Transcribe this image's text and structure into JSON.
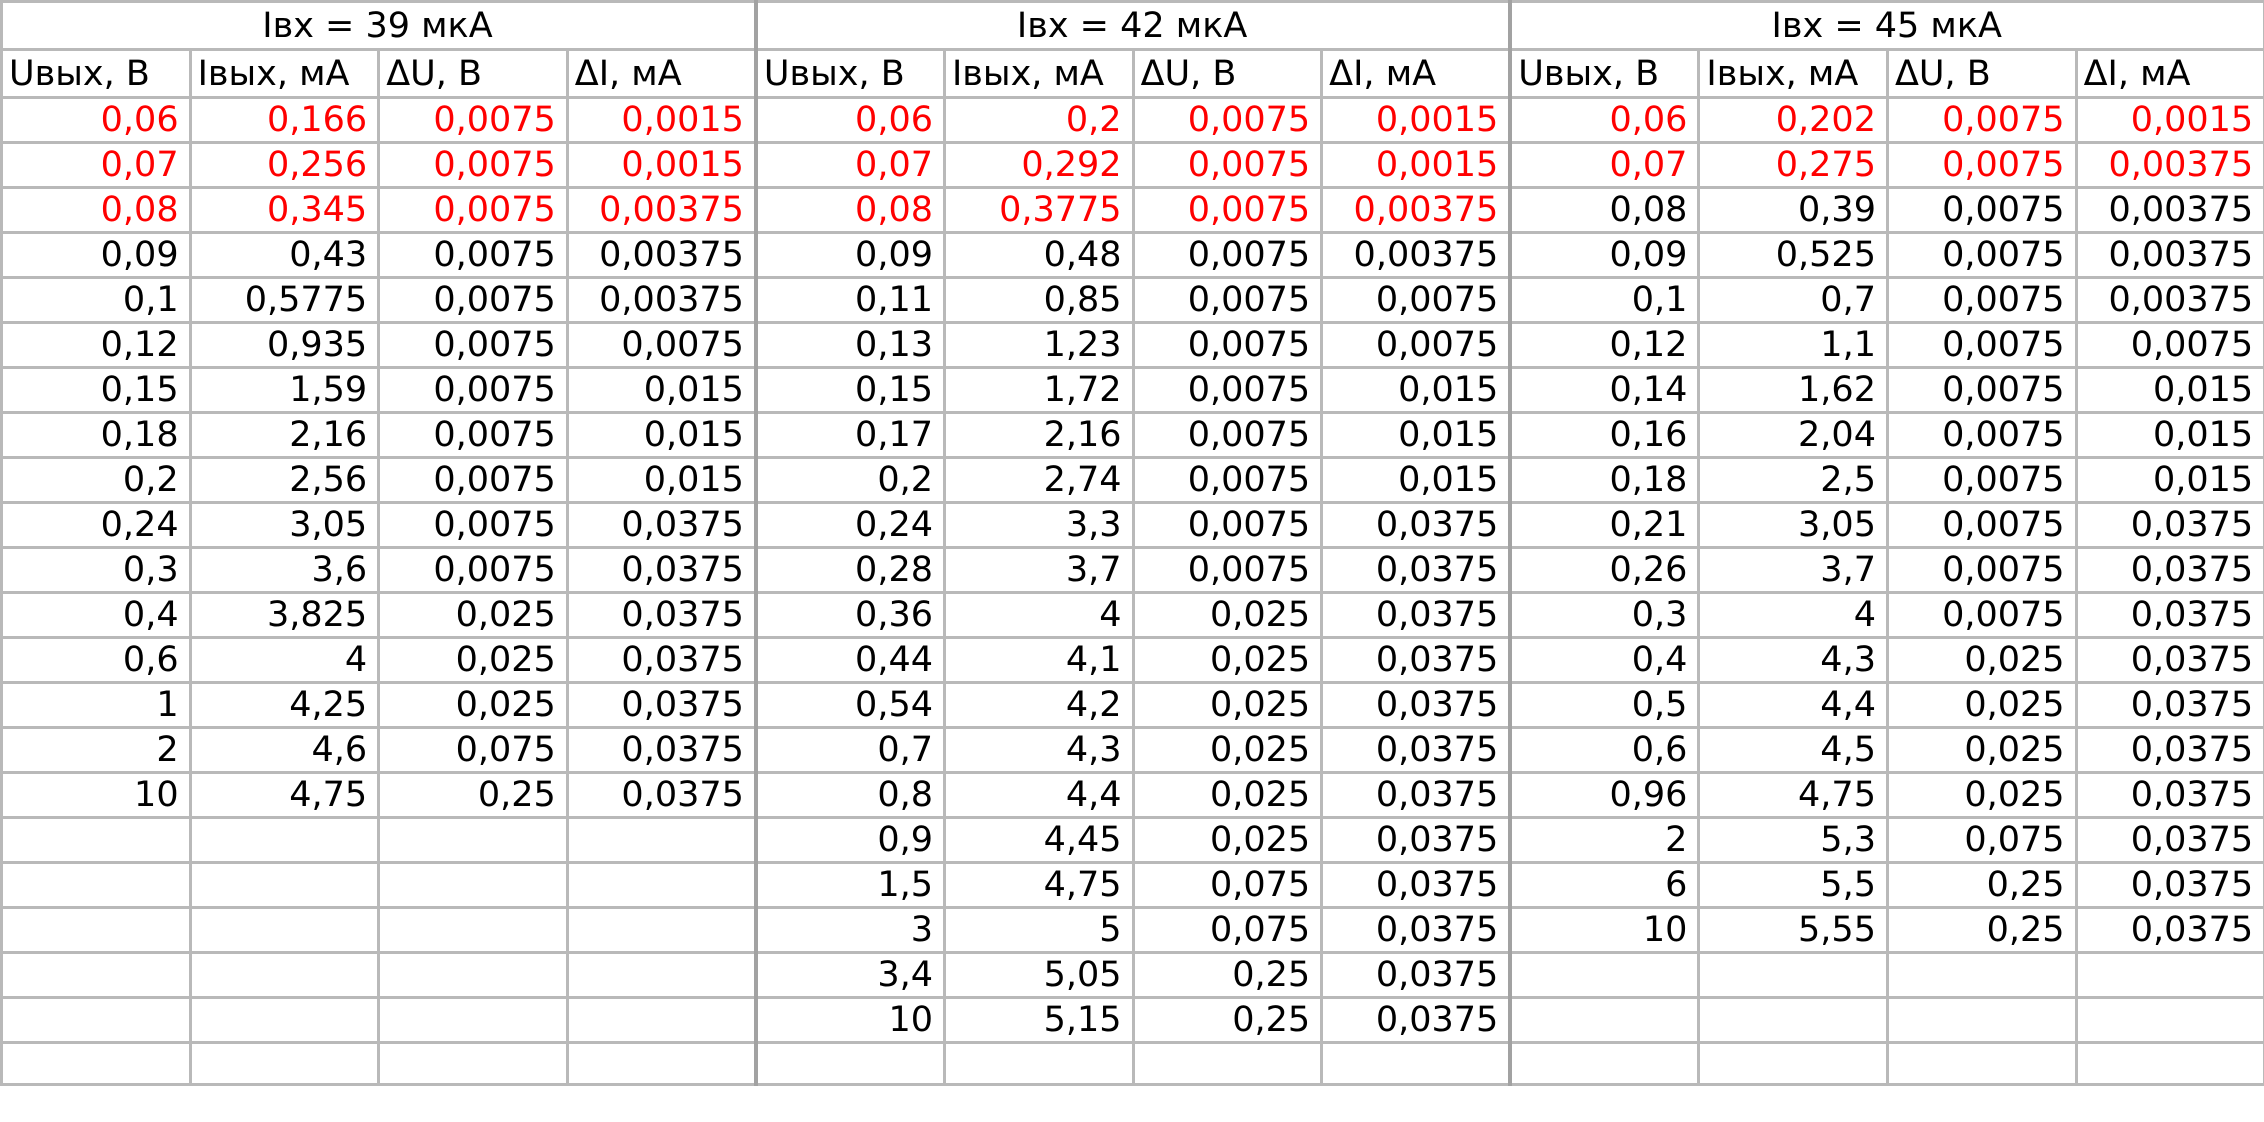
{
  "highlight_color": "#ff0000",
  "text_color": "#000000",
  "groups": [
    "Iвх = 39 мкА",
    "Iвх = 42 мкА",
    "Iвх = 45 мкА"
  ],
  "column_headers": [
    "Uвых, В",
    "Iвых, мА",
    "ΔU, В",
    "ΔI, мА"
  ],
  "rows": [
    [
      {
        "v": "0,06",
        "red": true
      },
      {
        "v": "0,166",
        "red": true
      },
      {
        "v": "0,0075",
        "red": true
      },
      {
        "v": "0,0015",
        "red": true
      },
      {
        "v": "0,06",
        "red": true
      },
      {
        "v": "0,2",
        "red": true
      },
      {
        "v": "0,0075",
        "red": true
      },
      {
        "v": "0,0015",
        "red": true
      },
      {
        "v": "0,06",
        "red": true
      },
      {
        "v": "0,202",
        "red": true
      },
      {
        "v": "0,0075",
        "red": true
      },
      {
        "v": "0,0015",
        "red": true
      }
    ],
    [
      {
        "v": "0,07",
        "red": true
      },
      {
        "v": "0,256",
        "red": true
      },
      {
        "v": "0,0075",
        "red": true
      },
      {
        "v": "0,0015",
        "red": true
      },
      {
        "v": "0,07",
        "red": true
      },
      {
        "v": "0,292",
        "red": true
      },
      {
        "v": "0,0075",
        "red": true
      },
      {
        "v": "0,0015",
        "red": true
      },
      {
        "v": "0,07",
        "red": true
      },
      {
        "v": "0,275",
        "red": true
      },
      {
        "v": "0,0075",
        "red": true
      },
      {
        "v": "0,00375",
        "red": true
      }
    ],
    [
      {
        "v": "0,08",
        "red": true
      },
      {
        "v": "0,345",
        "red": true
      },
      {
        "v": "0,0075",
        "red": true
      },
      {
        "v": "0,00375",
        "red": true
      },
      {
        "v": "0,08",
        "red": true
      },
      {
        "v": "0,3775",
        "red": true
      },
      {
        "v": "0,0075",
        "red": true
      },
      {
        "v": "0,00375",
        "red": true
      },
      {
        "v": "0,08"
      },
      {
        "v": "0,39"
      },
      {
        "v": "0,0075"
      },
      {
        "v": "0,00375"
      }
    ],
    [
      {
        "v": "0,09"
      },
      {
        "v": "0,43"
      },
      {
        "v": "0,0075"
      },
      {
        "v": "0,00375"
      },
      {
        "v": "0,09"
      },
      {
        "v": "0,48"
      },
      {
        "v": "0,0075"
      },
      {
        "v": "0,00375"
      },
      {
        "v": "0,09"
      },
      {
        "v": "0,525"
      },
      {
        "v": "0,0075"
      },
      {
        "v": "0,00375"
      }
    ],
    [
      {
        "v": "0,1"
      },
      {
        "v": "0,5775"
      },
      {
        "v": "0,0075"
      },
      {
        "v": "0,00375"
      },
      {
        "v": "0,11"
      },
      {
        "v": "0,85"
      },
      {
        "v": "0,0075"
      },
      {
        "v": "0,0075"
      },
      {
        "v": "0,1"
      },
      {
        "v": "0,7"
      },
      {
        "v": "0,0075"
      },
      {
        "v": "0,00375"
      }
    ],
    [
      {
        "v": "0,12"
      },
      {
        "v": "0,935"
      },
      {
        "v": "0,0075"
      },
      {
        "v": "0,0075"
      },
      {
        "v": "0,13"
      },
      {
        "v": "1,23"
      },
      {
        "v": "0,0075"
      },
      {
        "v": "0,0075"
      },
      {
        "v": "0,12"
      },
      {
        "v": "1,1"
      },
      {
        "v": "0,0075"
      },
      {
        "v": "0,0075"
      }
    ],
    [
      {
        "v": "0,15"
      },
      {
        "v": "1,59"
      },
      {
        "v": "0,0075"
      },
      {
        "v": "0,015"
      },
      {
        "v": "0,15"
      },
      {
        "v": "1,72"
      },
      {
        "v": "0,0075"
      },
      {
        "v": "0,015"
      },
      {
        "v": "0,14"
      },
      {
        "v": "1,62"
      },
      {
        "v": "0,0075"
      },
      {
        "v": "0,015"
      }
    ],
    [
      {
        "v": "0,18"
      },
      {
        "v": "2,16"
      },
      {
        "v": "0,0075"
      },
      {
        "v": "0,015"
      },
      {
        "v": "0,17"
      },
      {
        "v": "2,16"
      },
      {
        "v": "0,0075"
      },
      {
        "v": "0,015"
      },
      {
        "v": "0,16"
      },
      {
        "v": "2,04"
      },
      {
        "v": "0,0075"
      },
      {
        "v": "0,015"
      }
    ],
    [
      {
        "v": "0,2"
      },
      {
        "v": "2,56"
      },
      {
        "v": "0,0075"
      },
      {
        "v": "0,015"
      },
      {
        "v": "0,2"
      },
      {
        "v": "2,74"
      },
      {
        "v": "0,0075"
      },
      {
        "v": "0,015"
      },
      {
        "v": "0,18"
      },
      {
        "v": "2,5"
      },
      {
        "v": "0,0075"
      },
      {
        "v": "0,015"
      }
    ],
    [
      {
        "v": "0,24"
      },
      {
        "v": "3,05"
      },
      {
        "v": "0,0075"
      },
      {
        "v": "0,0375"
      },
      {
        "v": "0,24"
      },
      {
        "v": "3,3"
      },
      {
        "v": "0,0075"
      },
      {
        "v": "0,0375"
      },
      {
        "v": "0,21"
      },
      {
        "v": "3,05"
      },
      {
        "v": "0,0075"
      },
      {
        "v": "0,0375"
      }
    ],
    [
      {
        "v": "0,3"
      },
      {
        "v": "3,6"
      },
      {
        "v": "0,0075"
      },
      {
        "v": "0,0375"
      },
      {
        "v": "0,28"
      },
      {
        "v": "3,7"
      },
      {
        "v": "0,0075"
      },
      {
        "v": "0,0375"
      },
      {
        "v": "0,26"
      },
      {
        "v": "3,7"
      },
      {
        "v": "0,0075"
      },
      {
        "v": "0,0375"
      }
    ],
    [
      {
        "v": "0,4"
      },
      {
        "v": "3,825"
      },
      {
        "v": "0,025"
      },
      {
        "v": "0,0375"
      },
      {
        "v": "0,36"
      },
      {
        "v": "4"
      },
      {
        "v": "0,025"
      },
      {
        "v": "0,0375"
      },
      {
        "v": "0,3"
      },
      {
        "v": "4"
      },
      {
        "v": "0,0075"
      },
      {
        "v": "0,0375"
      }
    ],
    [
      {
        "v": "0,6"
      },
      {
        "v": "4"
      },
      {
        "v": "0,025"
      },
      {
        "v": "0,0375"
      },
      {
        "v": "0,44"
      },
      {
        "v": "4,1"
      },
      {
        "v": "0,025"
      },
      {
        "v": "0,0375"
      },
      {
        "v": "0,4"
      },
      {
        "v": "4,3"
      },
      {
        "v": "0,025"
      },
      {
        "v": "0,0375"
      }
    ],
    [
      {
        "v": "1"
      },
      {
        "v": "4,25"
      },
      {
        "v": "0,025"
      },
      {
        "v": "0,0375"
      },
      {
        "v": "0,54"
      },
      {
        "v": "4,2"
      },
      {
        "v": "0,025"
      },
      {
        "v": "0,0375"
      },
      {
        "v": "0,5"
      },
      {
        "v": "4,4"
      },
      {
        "v": "0,025"
      },
      {
        "v": "0,0375"
      }
    ],
    [
      {
        "v": "2"
      },
      {
        "v": "4,6"
      },
      {
        "v": "0,075"
      },
      {
        "v": "0,0375"
      },
      {
        "v": "0,7"
      },
      {
        "v": "4,3"
      },
      {
        "v": "0,025"
      },
      {
        "v": "0,0375"
      },
      {
        "v": "0,6"
      },
      {
        "v": "4,5"
      },
      {
        "v": "0,025"
      },
      {
        "v": "0,0375"
      }
    ],
    [
      {
        "v": "10"
      },
      {
        "v": "4,75"
      },
      {
        "v": "0,25"
      },
      {
        "v": "0,0375"
      },
      {
        "v": "0,8"
      },
      {
        "v": "4,4"
      },
      {
        "v": "0,025"
      },
      {
        "v": "0,0375"
      },
      {
        "v": "0,96"
      },
      {
        "v": "4,75"
      },
      {
        "v": "0,025"
      },
      {
        "v": "0,0375"
      }
    ],
    [
      {
        "v": ""
      },
      {
        "v": ""
      },
      {
        "v": ""
      },
      {
        "v": ""
      },
      {
        "v": "0,9"
      },
      {
        "v": "4,45"
      },
      {
        "v": "0,025"
      },
      {
        "v": "0,0375"
      },
      {
        "v": "2"
      },
      {
        "v": "5,3"
      },
      {
        "v": "0,075"
      },
      {
        "v": "0,0375"
      }
    ],
    [
      {
        "v": ""
      },
      {
        "v": ""
      },
      {
        "v": ""
      },
      {
        "v": ""
      },
      {
        "v": "1,5"
      },
      {
        "v": "4,75"
      },
      {
        "v": "0,075"
      },
      {
        "v": "0,0375"
      },
      {
        "v": "6"
      },
      {
        "v": "5,5"
      },
      {
        "v": "0,25"
      },
      {
        "v": "0,0375"
      }
    ],
    [
      {
        "v": ""
      },
      {
        "v": ""
      },
      {
        "v": ""
      },
      {
        "v": ""
      },
      {
        "v": "3"
      },
      {
        "v": "5"
      },
      {
        "v": "0,075"
      },
      {
        "v": "0,0375"
      },
      {
        "v": "10"
      },
      {
        "v": "5,55"
      },
      {
        "v": "0,25"
      },
      {
        "v": "0,0375"
      }
    ],
    [
      {
        "v": ""
      },
      {
        "v": ""
      },
      {
        "v": ""
      },
      {
        "v": ""
      },
      {
        "v": "3,4"
      },
      {
        "v": "5,05"
      },
      {
        "v": "0,25"
      },
      {
        "v": "0,0375"
      },
      {
        "v": ""
      },
      {
        "v": ""
      },
      {
        "v": ""
      },
      {
        "v": ""
      }
    ],
    [
      {
        "v": ""
      },
      {
        "v": ""
      },
      {
        "v": ""
      },
      {
        "v": ""
      },
      {
        "v": "10"
      },
      {
        "v": "5,15"
      },
      {
        "v": "0,25"
      },
      {
        "v": "0,0375"
      },
      {
        "v": ""
      },
      {
        "v": ""
      },
      {
        "v": ""
      },
      {
        "v": ""
      }
    ],
    [
      {
        "v": ""
      },
      {
        "v": ""
      },
      {
        "v": ""
      },
      {
        "v": ""
      },
      {
        "v": ""
      },
      {
        "v": ""
      },
      {
        "v": ""
      },
      {
        "v": ""
      },
      {
        "v": ""
      },
      {
        "v": ""
      },
      {
        "v": ""
      },
      {
        "v": ""
      }
    ]
  ]
}
